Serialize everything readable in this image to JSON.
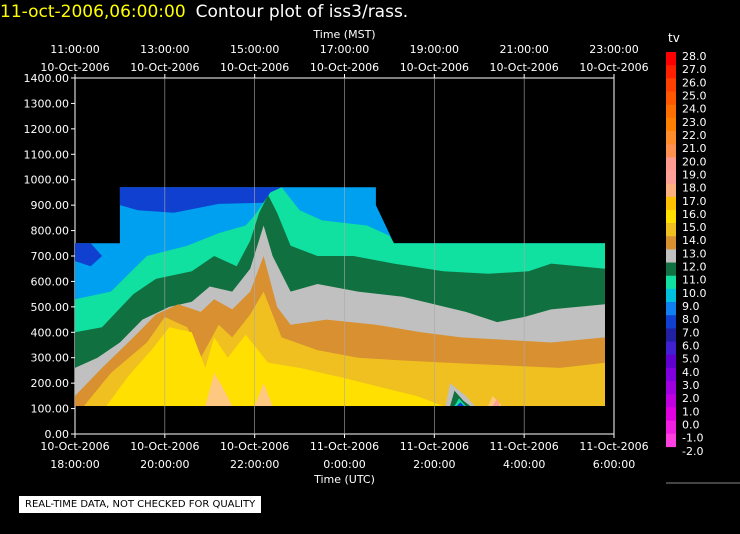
{
  "header": {
    "timestamp": "11-oct-2006,06:00:00",
    "subtitle": "Contour plot of iss3/rass."
  },
  "notice": "REAL-TIME DATA, NOT CHECKED FOR QUALITY",
  "chart_data": {
    "type": "heatmap",
    "title": "Contour plot of iss3/rass.",
    "top_axis_label": "Time (MST)",
    "bottom_axis_label": "Time (UTC)",
    "top_ticks": [
      {
        "time": "11:00:00",
        "date": "10-Oct-2006"
      },
      {
        "time": "13:00:00",
        "date": "10-Oct-2006"
      },
      {
        "time": "15:00:00",
        "date": "10-Oct-2006"
      },
      {
        "time": "17:00:00",
        "date": "10-Oct-2006"
      },
      {
        "time": "19:00:00",
        "date": "10-Oct-2006"
      },
      {
        "time": "21:00:00",
        "date": "10-Oct-2006"
      },
      {
        "time": "23:00:00",
        "date": "10-Oct-2006"
      }
    ],
    "bottom_ticks": [
      {
        "date": "10-Oct-2006",
        "time": "18:00:00"
      },
      {
        "date": "10-Oct-2006",
        "time": "20:00:00"
      },
      {
        "date": "10-Oct-2006",
        "time": "22:00:00"
      },
      {
        "date": "11-Oct-2006",
        "time": "0:00:00"
      },
      {
        "date": "11-Oct-2006",
        "time": "2:00:00"
      },
      {
        "date": "11-Oct-2006",
        "time": "4:00:00"
      },
      {
        "date": "11-Oct-2006",
        "time": "6:00:00"
      }
    ],
    "utc_range_hours": [
      18,
      30
    ],
    "y_ticks": [
      "1400.00",
      "1300.00",
      "1200.00",
      "1100.00",
      "1000.00",
      "900.00",
      "800.00",
      "700.00",
      "600.00",
      "500.00",
      "400.00",
      "300.00",
      "200.00",
      "100.00",
      "0.00"
    ],
    "ylim": [
      0,
      1400
    ],
    "grid": true,
    "colorbar": {
      "label": "tv",
      "levels": [
        "28.0",
        "27.0",
        "26.0",
        "25.0",
        "24.0",
        "23.0",
        "22.0",
        "21.0",
        "20.0",
        "19.0",
        "18.0",
        "17.0",
        "16.0",
        "15.0",
        "14.0",
        "13.0",
        "12.0",
        "11.0",
        "10.0",
        "9.0",
        "8.0",
        "7.0",
        "6.0",
        "5.0",
        "4.0",
        "3.0",
        "2.0",
        "1.0",
        "0.0",
        "-1.0",
        "-2.0"
      ],
      "colors": [
        "#ff0000",
        "#ff2000",
        "#ff4000",
        "#ff5800",
        "#ff6e00",
        "#ff8000",
        "#ff8c2a",
        "#ff9050",
        "#ff9a90",
        "#ffa098",
        "#ffb080",
        "#ffc000",
        "#ffe000",
        "#f0c020",
        "#d89030",
        "#c0c0c0",
        "#107040",
        "#10e0a0",
        "#00c0e0",
        "#1080f0",
        "#1040d0",
        "#2020a0",
        "#4020d0",
        "#6000d0",
        "#8000e0",
        "#a000e0",
        "#c000e0",
        "#e000e0",
        "#f020e0",
        "#ff40e0"
      ]
    },
    "contour_bands": [
      {
        "name": "8-9",
        "color": "#1040d0"
      },
      {
        "name": "9-10",
        "color": "#00a0f0"
      },
      {
        "name": "10-11",
        "color": "#10e0a0"
      },
      {
        "name": "11-12",
        "color": "#107040"
      },
      {
        "name": "12-13",
        "color": "#c0c0c0"
      },
      {
        "name": "13-14",
        "color": "#d89030"
      },
      {
        "name": "14-15",
        "color": "#f0c020"
      },
      {
        "name": "15-16",
        "color": "#ffe000"
      },
      {
        "name": "16-17",
        "color": "#ffc880"
      },
      {
        "name": "17-18",
        "color": "#ffa098"
      }
    ]
  }
}
